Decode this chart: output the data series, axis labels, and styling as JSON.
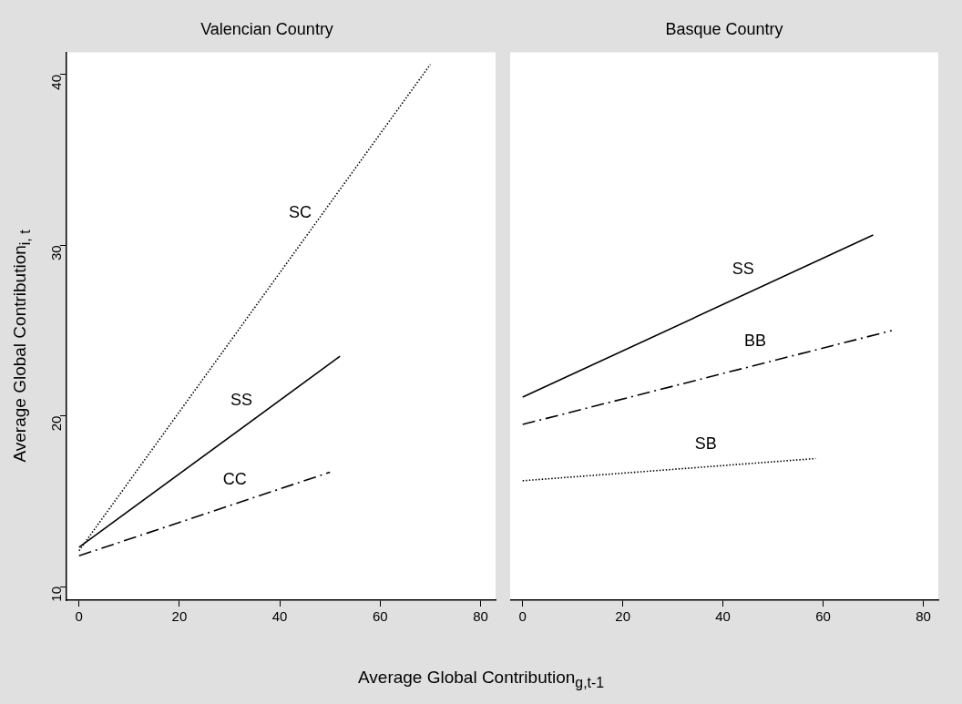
{
  "chart_data": [
    {
      "type": "line",
      "title": "Valencian Country",
      "ylabel": "Average Global Contribution$_{i, t}$",
      "xlabel": "Average Global Contribution$_{g,t-1}$",
      "xlim": [
        -2.5,
        83
      ],
      "xticks": [
        0,
        20,
        40,
        60,
        80
      ],
      "ylim": [
        9.2,
        41.3
      ],
      "yticks": [
        10,
        20,
        30,
        40
      ],
      "grid": false,
      "legend": false,
      "marker": "none",
      "series": [
        {
          "name": "SC",
          "color": "#000000",
          "line_style": "dotted",
          "x": [
            0,
            70
          ],
          "values": [
            12.1,
            40.6
          ]
        },
        {
          "name": "SS",
          "color": "#000000",
          "line_style": "solid",
          "x": [
            0,
            52
          ],
          "values": [
            12.3,
            23.5
          ]
        },
        {
          "name": "CC",
          "color": "#000000",
          "line_style": "dashed",
          "x": [
            0,
            50
          ],
          "values": [
            11.8,
            16.7
          ]
        }
      ]
    },
    {
      "type": "line",
      "title": "Basque Country",
      "xlim": [
        -2.5,
        83
      ],
      "xticks": [
        0,
        20,
        40,
        60,
        80
      ],
      "ylim": [
        9.2,
        41.3
      ],
      "yticks": [
        10,
        20,
        30,
        40
      ],
      "tick_labels": "x",
      "grid": false,
      "legend": false,
      "marker": "none",
      "series": [
        {
          "name": "SS",
          "color": "#000000",
          "line_style": "solid",
          "x": [
            0,
            70
          ],
          "values": [
            21.1,
            30.6
          ]
        },
        {
          "name": "BB",
          "color": "#000000",
          "line_style": "dashed",
          "x": [
            0,
            73.7
          ],
          "values": [
            19.5,
            25.0
          ]
        },
        {
          "name": "SB",
          "color": "#000000",
          "line_style": "dotted",
          "x": [
            0,
            58.5
          ],
          "values": [
            16.2,
            17.5
          ]
        }
      ]
    }
  ]
}
